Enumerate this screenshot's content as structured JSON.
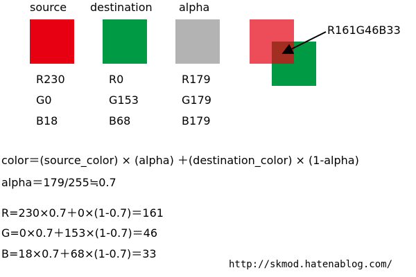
{
  "swatches": [
    {
      "label": "source",
      "r": "R230",
      "g": "G0",
      "b": "B18"
    },
    {
      "label": "destination",
      "r": "R0",
      "g": "G153",
      "b": "B68"
    },
    {
      "label": "alpha",
      "r": "R179",
      "g": "G179",
      "b": "B179"
    }
  ],
  "blend_label": "R161G46B33",
  "formulas": {
    "general": "color＝(source_color) × (alpha) ＋(destination_color) × (1-alpha)",
    "alpha": "alpha＝179/255≒0.7",
    "r": "R=230×0.7＋0×(1-0.7)＝161",
    "g": "G=0×0.7＋153×(1-0.7)＝46",
    "b": "B=18×0.7＋68×(1-0.7)＝33"
  },
  "footer": "http://skmod.hatenablog.com/"
}
